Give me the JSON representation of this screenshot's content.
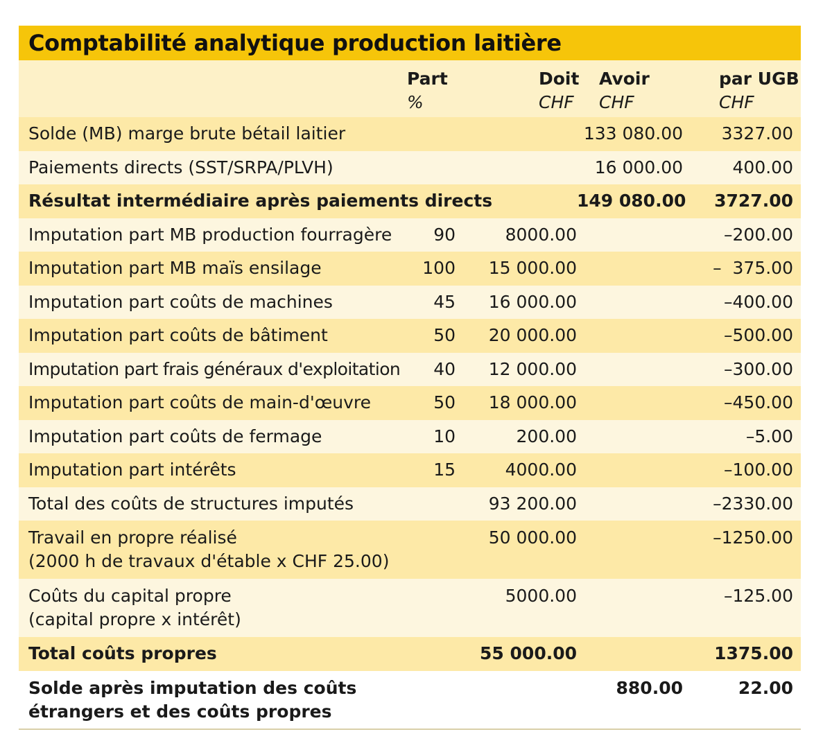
{
  "title": "Comptabilité analytique production laitière",
  "headers": {
    "part": {
      "name": "Part",
      "unit": "%"
    },
    "doit": {
      "name": "Doit",
      "unit": "CHF"
    },
    "avoir": {
      "name": "Avoir",
      "unit": "CHF"
    },
    "ugb": {
      "name": "par UGB",
      "unit": "CHF"
    }
  },
  "rows": [
    {
      "label": "Solde (MB) marge brute bétail laitier",
      "label2": "",
      "part": "",
      "doit": "",
      "avoir": "133 080.00",
      "ugb": "3327.00",
      "bold": false
    },
    {
      "label": "Paiements directs (SST/SRPA/PLVH)",
      "label2": "",
      "part": "",
      "doit": "",
      "avoir": "16 000.00",
      "ugb": "400.00",
      "bold": false
    },
    {
      "label": "Résultat intermédiaire après paiements directs",
      "label2": "",
      "part": "",
      "doit": "",
      "avoir": "149 080.00",
      "ugb": "3727.00",
      "bold": true
    },
    {
      "label": "Imputation part MB production fourragère",
      "label2": "",
      "part": "90",
      "doit": "8000.00",
      "avoir": "",
      "ugb": "–200.00",
      "bold": false
    },
    {
      "label": "Imputation part MB maïs ensilage",
      "label2": "",
      "part": "100",
      "doit": "15 000.00",
      "avoir": "",
      "ugb": "–  375.00",
      "bold": false
    },
    {
      "label": "Imputation part coûts de machines",
      "label2": "",
      "part": "45",
      "doit": "16 000.00",
      "avoir": "",
      "ugb": "–400.00",
      "bold": false
    },
    {
      "label": "Imputation part coûts de bâtiment",
      "label2": "",
      "part": "50",
      "doit": "20 000.00",
      "avoir": "",
      "ugb": "–500.00",
      "bold": false
    },
    {
      "label": "Imputation part frais généraux d'exploitation",
      "label2": "",
      "part": "40",
      "doit": "12 000.00",
      "avoir": "",
      "ugb": "–300.00",
      "bold": false
    },
    {
      "label": "Imputation part coûts de main-d'œuvre",
      "label2": "",
      "part": "50",
      "doit": "18 000.00",
      "avoir": "",
      "ugb": "–450.00",
      "bold": false
    },
    {
      "label": "Imputation part coûts de fermage",
      "label2": "",
      "part": "10",
      "doit": "200.00",
      "avoir": "",
      "ugb": "–5.00",
      "bold": false
    },
    {
      "label": "Imputation part intérêts",
      "label2": "",
      "part": "15",
      "doit": "4000.00",
      "avoir": "",
      "ugb": "–100.00",
      "bold": false
    },
    {
      "label": "Total des coûts de structures imputés",
      "label2": "",
      "part": "",
      "doit": "93 200.00",
      "avoir": "",
      "ugb": "–2330.00",
      "bold": false
    },
    {
      "label": "Travail en propre réalisé",
      "label2": "(2000 h de travaux d'étable x CHF 25.00)",
      "part": "",
      "doit": "50 000.00",
      "avoir": "",
      "ugb": "–1250.00",
      "bold": false
    },
    {
      "label": "Coûts du capital propre",
      "label2": "(capital propre x intérêt)",
      "part": "",
      "doit": "5000.00",
      "avoir": "",
      "ugb": "–125.00",
      "bold": false
    },
    {
      "label": "Total coûts propres",
      "label2": "",
      "part": "",
      "doit": "55 000.00",
      "avoir": "",
      "ugb": "1375.00",
      "bold": true
    },
    {
      "label": "Solde après imputation des coûts",
      "label2": "étrangers et des coûts propres",
      "part": "",
      "doit": "",
      "avoir": "880.00",
      "ugb": "22.00",
      "bold": true
    }
  ],
  "colors": {
    "title_bar": "#f6c50a",
    "row_dark": "#fde9a7",
    "row_light": "#fdf6df",
    "header_bg": "#fdf1c8"
  }
}
